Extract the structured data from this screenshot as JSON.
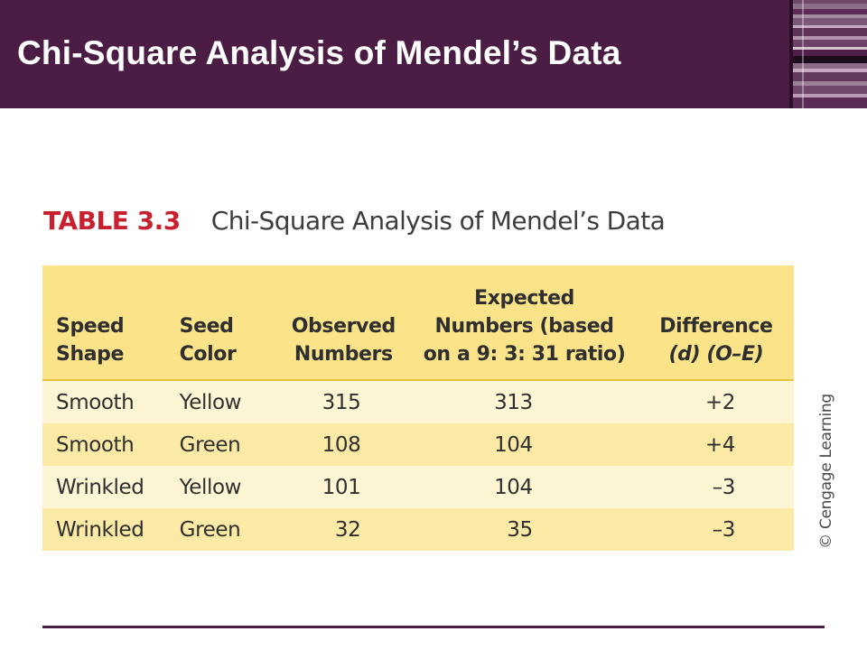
{
  "slide": {
    "title": "Chi-Square Analysis of Mendel’s Data"
  },
  "table": {
    "label": "TABLE 3.3",
    "caption": "Chi-Square Analysis of Mendel’s Data",
    "headers": {
      "col1": [
        "Speed",
        "Shape"
      ],
      "col2": [
        "Seed",
        "Color"
      ],
      "col3": [
        "Observed",
        "Numbers"
      ],
      "col4": [
        "Expected",
        "Numbers (based",
        "on a 9: 3: 31 ratio)"
      ],
      "col5": [
        "Difference",
        "(d) (O–E)"
      ]
    },
    "rows": [
      {
        "shape": "Smooth",
        "color": "Yellow",
        "observed": "315",
        "expected": "313",
        "difference": "+2"
      },
      {
        "shape": "Smooth",
        "color": "Green",
        "observed": "108",
        "expected": "104",
        "difference": "+4"
      },
      {
        "shape": "Wrinkled",
        "color": "Yellow",
        "observed": "101",
        "expected": "104",
        "difference": "–3"
      },
      {
        "shape": "Wrinkled",
        "color": "Green",
        "observed": "32",
        "expected": "35",
        "difference": "–3"
      }
    ]
  },
  "copyright": "© Cengage Learning",
  "colors": {
    "banner": "#4b1d45",
    "header_fill": "#fbe38a",
    "row_light": "#fdf5d3",
    "row_dark": "#fbe9a6",
    "caption_label": "#c8202e"
  }
}
